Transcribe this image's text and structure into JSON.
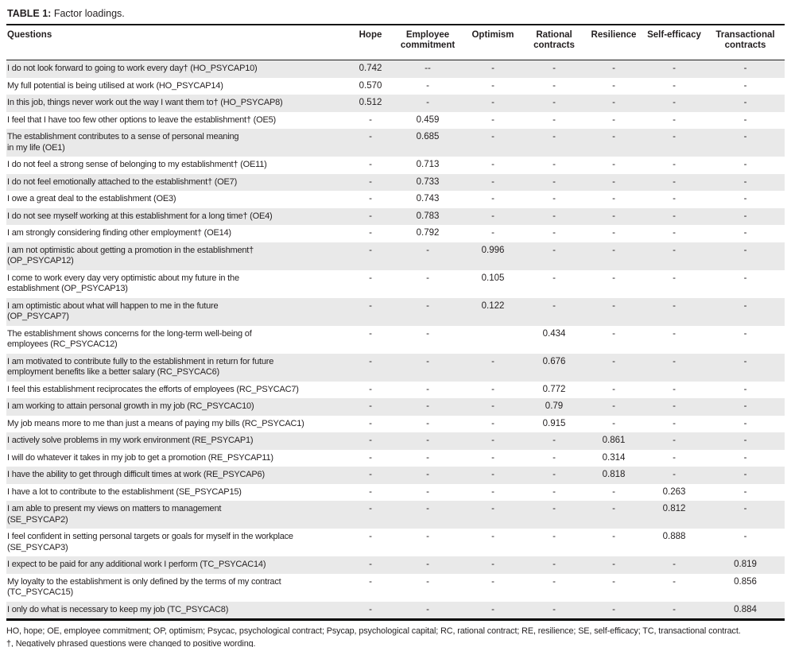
{
  "title": {
    "label": "TABLE 1:",
    "text": "Factor loadings."
  },
  "table": {
    "columns": [
      "Questions",
      "Hope",
      "Employee\ncommitment",
      "Optimism",
      "Rational\ncontracts",
      "Resilience",
      "Self-efficacy",
      "Transactional\ncontracts"
    ],
    "rows": [
      {
        "q": "I do not look forward to going to work every day† (HO_PSYCAP10)",
        "v": [
          "0.742",
          "--",
          "-",
          "-",
          "-",
          "-",
          "-"
        ]
      },
      {
        "q": "My full potential is being utilised at work (HO_PSYCAP14)",
        "v": [
          "0.570",
          "-",
          "-",
          "-",
          "-",
          "-",
          "-"
        ]
      },
      {
        "q": "In this job, things never work out the way I want them to† (HO_PSYCAP8)",
        "v": [
          "0.512",
          "-",
          "-",
          "-",
          "-",
          "-",
          "-"
        ]
      },
      {
        "q": "I feel that I have too few other options to leave the establishment† (OE5)",
        "v": [
          "-",
          "0.459",
          "-",
          "-",
          "-",
          "-",
          "-"
        ]
      },
      {
        "q": "The establishment contributes to a sense of personal meaning\nin my life (OE1)",
        "v": [
          "-",
          "0.685",
          "-",
          "-",
          "-",
          "-",
          "-"
        ]
      },
      {
        "q": "I do not feel a strong sense of belonging to my establishment† (OE11)",
        "v": [
          "-",
          "0.713",
          "-",
          "-",
          "-",
          "-",
          "-"
        ]
      },
      {
        "q": "I do not feel emotionally attached to the establishment† (OE7)",
        "v": [
          "-",
          "0.733",
          "-",
          "-",
          "-",
          "-",
          "-"
        ]
      },
      {
        "q": "I owe a great deal to the establishment (OE3)",
        "v": [
          "-",
          "0.743",
          "-",
          "-",
          "-",
          "-",
          "-"
        ]
      },
      {
        "q": "I do not see myself working at this establishment for a long time† (OE4)",
        "v": [
          "-",
          "0.783",
          "-",
          "-",
          "-",
          "-",
          "-"
        ]
      },
      {
        "q": "I am strongly considering finding other employment† (OE14)",
        "v": [
          "-",
          "0.792",
          "-",
          "-",
          "-",
          "-",
          "-"
        ]
      },
      {
        "q": "I am not optimistic about getting a promotion in the establishment†\n(OP_PSYCAP12)",
        "v": [
          "-",
          "-",
          "0.996",
          "-",
          "-",
          "-",
          "-"
        ]
      },
      {
        "q": "I come to work every day very optimistic about my future in the\nestablishment (OP_PSYCAP13)",
        "v": [
          "-",
          "-",
          "0.105",
          "-",
          "-",
          "-",
          "-"
        ]
      },
      {
        "q": "I am optimistic about what will happen to me in the future\n(OP_PSYCAP7)",
        "v": [
          "-",
          "-",
          "0.122",
          "-",
          "-",
          "-",
          "-"
        ]
      },
      {
        "q": "The establishment shows concerns for the long-term well-being of\nemployees (RC_PSYCAC12)",
        "v": [
          "-",
          "-",
          "",
          "0.434",
          "-",
          "-",
          "-"
        ]
      },
      {
        "q": "I am motivated to contribute fully to the establishment in return for future\nemployment benefits like a better salary (RC_PSYCAC6)",
        "v": [
          "-",
          "-",
          "-",
          "0.676",
          "-",
          "-",
          "-"
        ]
      },
      {
        "q": "I feel this establishment reciprocates the efforts of employees (RC_PSYCAC7)",
        "v": [
          "-",
          "-",
          "-",
          "0.772",
          "-",
          "-",
          "-"
        ]
      },
      {
        "q": "I am working to attain personal growth in my job (RC_PSYCAC10)",
        "v": [
          "-",
          "-",
          "-",
          "0.79",
          "-",
          "-",
          "-"
        ]
      },
      {
        "q": "My job means more to me than just a means of paying my bills (RC_PSYCAC1)",
        "v": [
          "-",
          "-",
          "-",
          "0.915",
          "-",
          "-",
          "-"
        ]
      },
      {
        "q": "I actively solve problems in my work environment (RE_PSYCAP1)",
        "v": [
          "-",
          "-",
          "-",
          "-",
          "0.861",
          "-",
          "-"
        ]
      },
      {
        "q": "I will do whatever it takes in my job to get a promotion (RE_PSYCAP11)",
        "v": [
          "-",
          "-",
          "-",
          "-",
          "0.314",
          "-",
          "-"
        ]
      },
      {
        "q": "I have the ability to get through difficult times at work (RE_PSYCAP6)",
        "v": [
          "-",
          "-",
          "-",
          "-",
          "0.818",
          "-",
          "-"
        ]
      },
      {
        "q": "I have a lot to contribute to the establishment (SE_PSYCAP15)",
        "v": [
          "-",
          "-",
          "-",
          "-",
          "-",
          "0.263",
          "-"
        ]
      },
      {
        "q": "I am able to present my views on matters to management\n(SE_PSYCAP2)",
        "v": [
          "-",
          "-",
          "-",
          "-",
          "-",
          "0.812",
          "-"
        ]
      },
      {
        "q": "I feel confident in setting personal targets or goals for myself in the workplace\n(SE_PSYCAP3)",
        "v": [
          "-",
          "-",
          "-",
          "-",
          "-",
          "0.888",
          "-"
        ]
      },
      {
        "q": "I expect to be paid for any additional work I perform (TC_PSYCAC14)",
        "v": [
          "-",
          "-",
          "-",
          "-",
          "-",
          "-",
          "0.819"
        ]
      },
      {
        "q": "My loyalty to the establishment is only defined by the terms of my contract\n(TC_PSYCAC15)",
        "v": [
          "-",
          "-",
          "-",
          "-",
          "-",
          "-",
          "0.856"
        ]
      },
      {
        "q": "I only do what is necessary to keep my job (TC_PSYCAC8)",
        "v": [
          "-",
          "-",
          "-",
          "-",
          "-",
          "-",
          "0.884"
        ]
      }
    ]
  },
  "footnotes": [
    "HO, hope; OE, employee commitment; OP, optimism; Psycac, psychological contract; Psycap, psychological capital; RC, rational contract; RE, resilience; SE, self-efficacy; TC, transactional contract.",
    "†, Negatively phrased questions were changed to positive wording."
  ],
  "colors": {
    "stripe": "#e9e9e9",
    "text": "#231f20",
    "rule": "#000000"
  }
}
